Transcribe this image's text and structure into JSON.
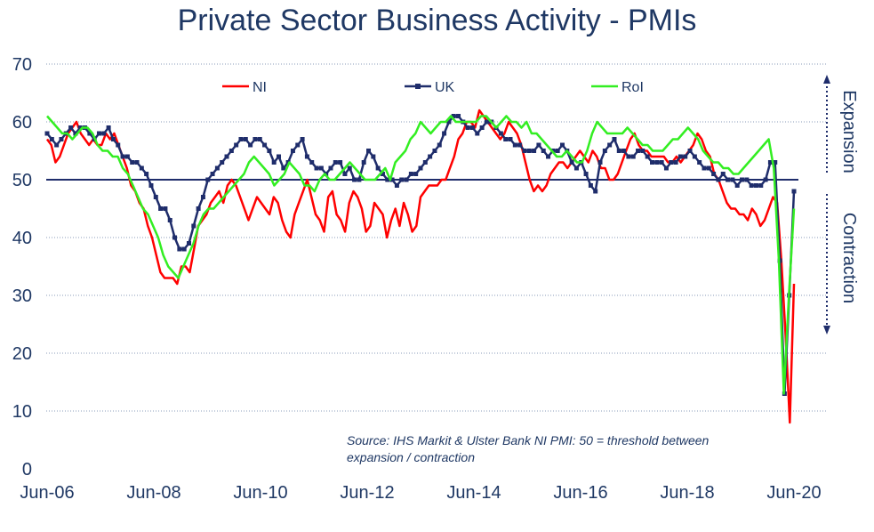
{
  "chart_data": {
    "type": "line",
    "title": "Private Sector Business Activity - PMIs",
    "ylim": [
      0,
      70
    ],
    "yticks": [
      0,
      10,
      20,
      30,
      40,
      50,
      60,
      70
    ],
    "x_start": "Jun-06",
    "x_end": "Jun-20",
    "xtick_labels": [
      "Jun-06",
      "Jun-08",
      "Jun-10",
      "Jun-12",
      "Jun-14",
      "Jun-16",
      "Jun-18",
      "Jun-20"
    ],
    "threshold": 50,
    "grid": true,
    "legend_position": "top",
    "series": [
      {
        "name": "NI",
        "color": "#ff0000",
        "values": [
          57,
          56,
          53,
          54,
          56,
          58,
          59,
          60,
          58,
          57,
          56,
          57,
          56,
          56,
          58,
          57,
          58,
          56,
          54,
          52,
          49,
          48,
          46,
          45,
          42,
          40,
          37,
          34,
          33,
          33,
          33,
          32,
          35,
          35,
          34,
          38,
          42,
          43,
          44,
          46,
          47,
          48,
          46,
          49,
          50,
          49,
          47,
          45,
          43,
          45,
          47,
          46,
          45,
          44,
          47,
          46,
          43,
          41,
          40,
          44,
          46,
          48,
          50,
          47,
          44,
          43,
          41,
          47,
          48,
          44,
          43,
          41,
          46,
          48,
          47,
          45,
          41,
          42,
          46,
          45,
          44,
          40,
          43,
          45,
          42,
          46,
          44,
          41,
          42,
          47,
          48,
          49,
          49,
          49,
          50,
          50,
          52,
          54,
          57,
          58,
          60,
          60,
          59,
          62,
          61,
          60,
          59,
          58,
          57,
          58,
          60,
          59,
          58,
          56,
          53,
          50,
          48,
          49,
          48,
          49,
          51,
          52,
          53,
          53,
          52,
          53,
          54,
          55,
          54,
          53,
          55,
          54,
          52,
          52,
          50,
          50,
          51,
          53,
          55,
          57,
          58,
          56,
          55,
          55,
          54,
          54,
          54,
          54,
          53,
          53,
          54,
          53,
          54,
          55,
          56,
          58,
          57,
          55,
          54,
          51,
          50,
          48,
          46,
          45,
          45,
          44,
          44,
          43,
          45,
          44,
          42,
          43,
          45,
          47,
          46,
          36,
          23,
          8,
          32
        ],
        "label_color": "#ff0000"
      },
      {
        "name": "UK",
        "color": "#1f2d6b",
        "values": [
          58,
          57,
          56,
          57,
          58,
          59,
          58,
          59,
          59,
          58,
          57,
          58,
          58,
          59,
          57,
          56,
          54,
          54,
          53,
          53,
          52,
          51,
          49,
          47,
          45,
          45,
          43,
          40,
          38,
          38,
          39,
          42,
          45,
          47,
          50,
          51,
          52,
          53,
          54,
          55,
          56,
          57,
          57,
          56,
          57,
          57,
          56,
          55,
          53,
          54,
          52,
          53,
          55,
          56,
          57,
          54,
          53,
          52,
          52,
          51,
          52,
          53,
          53,
          51,
          52,
          50,
          50,
          53,
          55,
          54,
          52,
          51,
          50,
          50,
          49,
          50,
          50,
          51,
          51,
          52,
          53,
          54,
          55,
          56,
          58,
          60,
          61,
          61,
          60,
          59,
          59,
          58,
          59,
          60,
          60,
          59,
          58,
          57,
          57,
          56,
          56,
          55,
          55,
          55,
          56,
          55,
          54,
          55,
          55,
          56,
          55,
          53,
          52,
          53,
          51,
          49,
          48,
          53,
          55,
          56,
          57,
          55,
          55,
          54,
          54,
          55,
          55,
          54,
          53,
          53,
          53,
          52,
          53,
          53,
          54,
          54,
          55,
          54,
          53,
          52,
          52,
          51,
          50,
          51,
          50,
          50,
          49,
          50,
          50,
          49,
          49,
          49,
          50,
          53,
          53,
          36,
          13,
          30,
          48
        ],
        "label_color": "#1f2d6b"
      },
      {
        "name": "RoI",
        "color": "#33ee22",
        "values": [
          61,
          60,
          59,
          58,
          58,
          57,
          58,
          59,
          59,
          58,
          56,
          55,
          55,
          54,
          54,
          52,
          51,
          49,
          47,
          45,
          44,
          42,
          40,
          37,
          35,
          34,
          33,
          35,
          37,
          39,
          42,
          44,
          45,
          45,
          46,
          47,
          48,
          49,
          50,
          51,
          53,
          54,
          53,
          52,
          51,
          49,
          50,
          51,
          53,
          52,
          51,
          49,
          49,
          48,
          50,
          51,
          50,
          50,
          51,
          52,
          53,
          52,
          51,
          50,
          50,
          50,
          51,
          52,
          50,
          53,
          54,
          55,
          57,
          58,
          60,
          59,
          58,
          59,
          60,
          60,
          61,
          60,
          60,
          60,
          60,
          60,
          61,
          61,
          60,
          59,
          60,
          61,
          60,
          60,
          59,
          60,
          58,
          58,
          57,
          56,
          55,
          54,
          54,
          55,
          54,
          53,
          53,
          55,
          58,
          60,
          59,
          58,
          58,
          58,
          58,
          59,
          58,
          57,
          56,
          56,
          55,
          55,
          55,
          56,
          57,
          57,
          58,
          59,
          58,
          57,
          55,
          54,
          53,
          53,
          52,
          52,
          51,
          51,
          52,
          53,
          54,
          55,
          56,
          57,
          52,
          36,
          13,
          30,
          45
        ],
        "label_color": "#33ee22"
      }
    ],
    "annotations": {
      "expansion": "Expansion",
      "contraction": "Contraction",
      "source_line1": "Source: IHS Markit & Ulster Bank NI PMI: 50 = threshold between",
      "source_line2": "expansion / contraction"
    }
  }
}
